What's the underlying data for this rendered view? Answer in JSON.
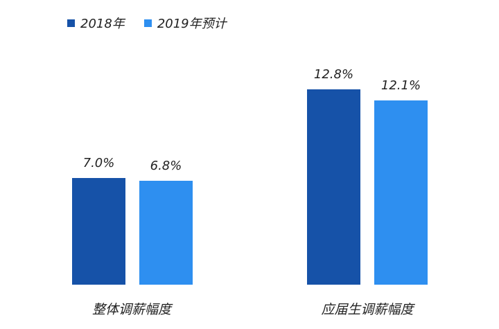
{
  "chart_data": {
    "type": "bar",
    "title": "",
    "xlabel": "",
    "ylabel": "",
    "categories": [
      "整体调薪幅度",
      "应届生调薪幅度"
    ],
    "series": [
      {
        "name": "2018年",
        "color": "#1652a8",
        "values": [
          7.0,
          12.8
        ],
        "labels": [
          "7.0%",
          "12.8%"
        ]
      },
      {
        "name": "2019年预计",
        "color": "#2e8ff0",
        "values": [
          6.8,
          12.1
        ],
        "labels": [
          "6.8%",
          "12.1%"
        ]
      }
    ],
    "value_suffix": "%",
    "grid": false,
    "legend_position": "top-left",
    "ylim": [
      0,
      14
    ]
  }
}
